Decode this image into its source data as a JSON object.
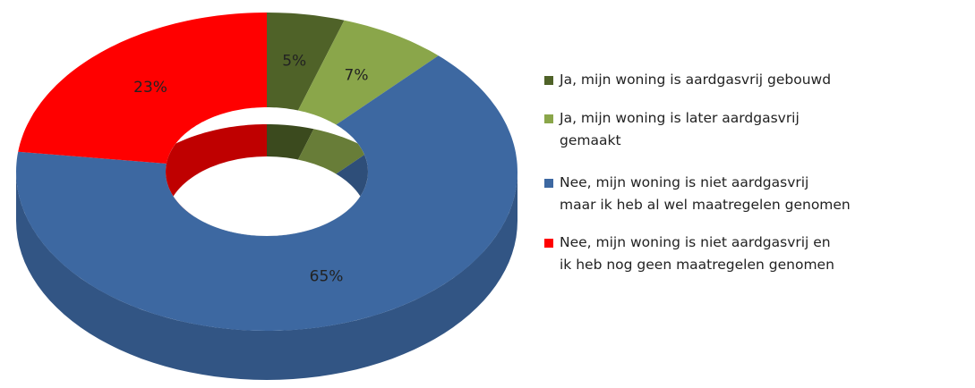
{
  "chart_data": {
    "type": "donut",
    "categories": [
      "Ja, mijn woning is aardgasvrij gebouwd",
      "Ja, mijn woning is later aardgasvrij\ngemaakt",
      "Nee, mijn woning is niet aardgasvrij\nmaar ik heb al wel maatregelen genomen",
      "Nee, mijn woning is niet aardgasvrij en\nik heb nog geen maatregelen genomen"
    ],
    "values": [
      5,
      7,
      65,
      23
    ],
    "value_labels": [
      "5%",
      "7%",
      "65%",
      "23%"
    ],
    "colors": [
      "#4f6228",
      "#8aa64a",
      "#3d68a1",
      "#ff0000"
    ],
    "legend": "right"
  }
}
